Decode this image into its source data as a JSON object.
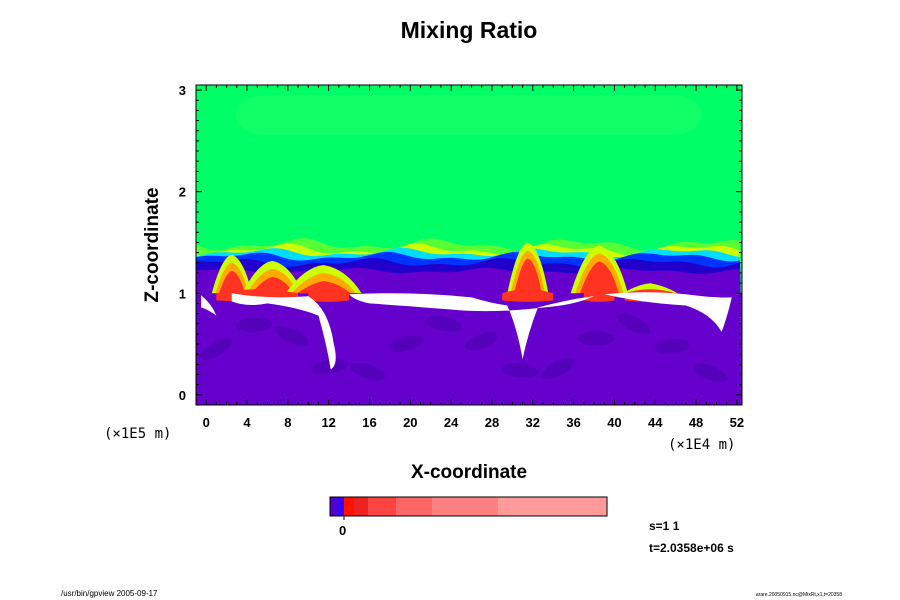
{
  "chart_data": {
    "type": "heatmap",
    "title": "Mixing Ratio",
    "xlabel": "X-coordinate",
    "ylabel": "Z-coordinate",
    "x_unit": "(×1E4 m)",
    "y_unit": "(×1E5 m)",
    "x_ticks": [
      0,
      4,
      8,
      12,
      16,
      20,
      24,
      28,
      32,
      36,
      40,
      44,
      48,
      52
    ],
    "y_ticks": [
      0,
      1,
      2,
      3
    ],
    "xlim": [
      -1,
      52.5
    ],
    "ylim": [
      -0.1,
      3.05
    ],
    "colorbar": {
      "tick_labels": [
        "0"
      ],
      "colors": [
        "#5500cc",
        "#3300ff",
        "#ff1100",
        "#ee2222",
        "#ff4444",
        "#ff6666",
        "#ff8080",
        "#ff9a9a"
      ]
    },
    "info": {
      "step": "s=1 1",
      "time": "t=2.0358e+06 s"
    },
    "palette": {
      "green": "#00ff66",
      "green_light": "#22ff55",
      "yellow": "#ccff00",
      "orange": "#ffaa00",
      "red": "#ff3322",
      "cyan": "#00ddff",
      "blue": "#0033ff",
      "navy": "#2200cc",
      "purple": "#6600cc",
      "purple_dark": "#5500bb",
      "white": "#ffffff"
    },
    "plumes": [
      {
        "x": 2.5,
        "top": 1.28,
        "bottom": 0.92
      },
      {
        "x": 6.5,
        "top": 1.22,
        "bottom": 1.0
      },
      {
        "x": 11.5,
        "top": 1.18,
        "bottom": 1.0
      },
      {
        "x": 31.5,
        "top": 1.4,
        "bottom": 0.92
      },
      {
        "x": 38.5,
        "top": 1.37,
        "bottom": 0.95
      },
      {
        "x": 43.5,
        "top": 1.0,
        "bottom": 0.92
      }
    ]
  },
  "footer": {
    "left": "/usr/bin/gpview 2005-09-17",
    "right": "arare.20050915.nc@MixRt,x1,t=20358"
  }
}
